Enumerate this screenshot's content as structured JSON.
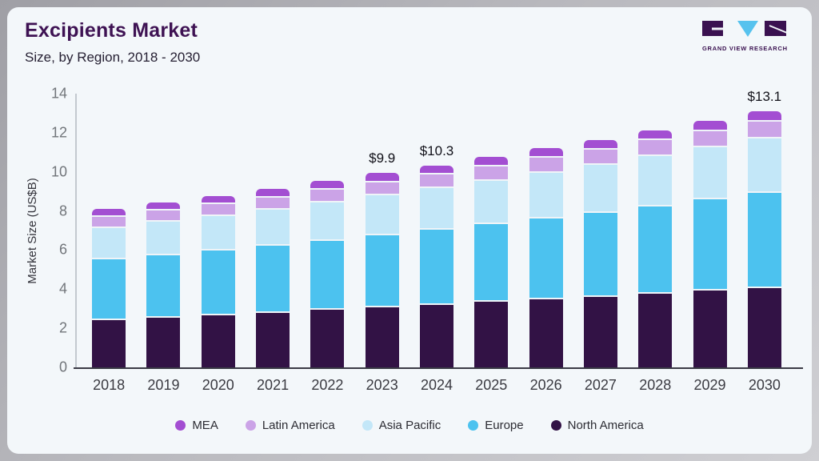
{
  "header": {
    "title": "Excipients Market",
    "subtitle": "Size, by Region, 2018 - 2030"
  },
  "logo": {
    "name": "Grand View Research",
    "text": "GRAND VIEW RESEARCH",
    "block_color": "#3a1150",
    "triangle_color": "#56c2ee"
  },
  "colors": {
    "card_bg": "#f3f7fa",
    "title": "#3e1253",
    "axis_dark": "#3a3a45",
    "axis_light": "#c3c9cf"
  },
  "chart_data": {
    "type": "bar",
    "stacked": true,
    "title": "Excipients Market Size, by Region, 2018 - 2030",
    "xlabel": "",
    "ylabel": "Market Size (US$B)",
    "ylim": [
      0,
      14
    ],
    "yticks": [
      0,
      2,
      4,
      6,
      8,
      10,
      12,
      14
    ],
    "grid": false,
    "legend_position": "bottom",
    "categories": [
      "2018",
      "2019",
      "2020",
      "2021",
      "2022",
      "2023",
      "2024",
      "2025",
      "2026",
      "2027",
      "2028",
      "2029",
      "2030"
    ],
    "series_stack_order": "bottom_to_top",
    "series": [
      {
        "name": "North America",
        "color": "#321245",
        "values": [
          2.5,
          2.62,
          2.75,
          2.88,
          3.01,
          3.15,
          3.28,
          3.42,
          3.56,
          3.7,
          3.85,
          4.0,
          4.15
        ]
      },
      {
        "name": "Europe",
        "color": "#4cc2ef",
        "values": [
          3.1,
          3.2,
          3.3,
          3.42,
          3.55,
          3.69,
          3.83,
          3.98,
          4.14,
          4.3,
          4.48,
          4.66,
          4.85
        ]
      },
      {
        "name": "Asia Pacific",
        "color": "#c3e7f8",
        "values": [
          1.62,
          1.7,
          1.78,
          1.86,
          1.95,
          2.04,
          2.13,
          2.23,
          2.33,
          2.43,
          2.54,
          2.66,
          2.78
        ]
      },
      {
        "name": "Latin America",
        "color": "#cba3e7",
        "values": [
          0.55,
          0.57,
          0.6,
          0.62,
          0.65,
          0.67,
          0.7,
          0.73,
          0.76,
          0.79,
          0.82,
          0.85,
          0.88
        ]
      },
      {
        "name": "MEA",
        "color": "#a34ed2",
        "values": [
          0.33,
          0.34,
          0.35,
          0.36,
          0.37,
          0.38,
          0.39,
          0.4,
          0.41,
          0.42,
          0.43,
          0.44,
          0.45
        ]
      }
    ],
    "totals": [
      8.1,
      8.4,
      8.8,
      9.1,
      9.5,
      9.9,
      10.3,
      10.7,
      11.2,
      11.6,
      12.1,
      12.6,
      13.1
    ],
    "value_labels": {
      "2023": "$9.9",
      "2024": "$10.3",
      "2030": "$13.1"
    }
  },
  "legend": {
    "items": [
      {
        "label": "MEA",
        "color": "#a34ed2"
      },
      {
        "label": "Latin America",
        "color": "#cba3e7"
      },
      {
        "label": "Asia Pacific",
        "color": "#c3e7f8"
      },
      {
        "label": "Europe",
        "color": "#4cc2ef"
      },
      {
        "label": "North America",
        "color": "#321245"
      }
    ]
  }
}
